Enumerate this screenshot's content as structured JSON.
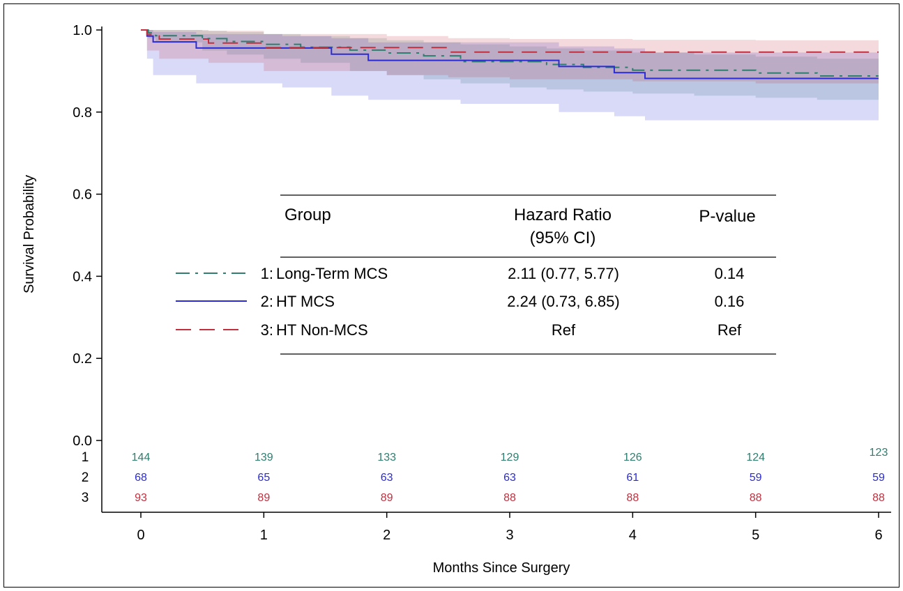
{
  "chart_data": {
    "type": "line",
    "title": "",
    "xlabel": "Months Since Surgery",
    "ylabel": "Survival Probability",
    "xlim": [
      0,
      6
    ],
    "ylim": [
      0.0,
      1.0
    ],
    "x_ticks": [
      "0",
      "1",
      "2",
      "3",
      "4",
      "5",
      "6"
    ],
    "y_ticks": [
      "0.0",
      "0.2",
      "0.4",
      "0.6",
      "0.8",
      "1.0"
    ],
    "grid": false,
    "colors": {
      "long_term_mcs": "#2e7d6e",
      "ht_mcs": "#2b2bd6",
      "ht_non_mcs": "#c0303f"
    },
    "series": [
      {
        "key": "long_term_mcs",
        "line_style": "dash-dot",
        "x": [
          0,
          0.06,
          0.12,
          0.5,
          0.7,
          1.0,
          1.3,
          1.7,
          2.0,
          2.3,
          2.6,
          3.0,
          3.3,
          3.6,
          4.0,
          4.5,
          5.0,
          5.5,
          6.0
        ],
        "y": [
          1.0,
          0.993,
          0.986,
          0.979,
          0.972,
          0.965,
          0.958,
          0.951,
          0.944,
          0.937,
          0.923,
          0.923,
          0.916,
          0.909,
          0.902,
          0.902,
          0.895,
          0.888,
          0.888
        ],
        "ci_lower": [
          1.0,
          0.98,
          0.97,
          0.95,
          0.94,
          0.93,
          0.92,
          0.9,
          0.89,
          0.88,
          0.87,
          0.86,
          0.855,
          0.85,
          0.845,
          0.84,
          0.835,
          0.83,
          0.82
        ],
        "ci_upper": [
          1.0,
          1.0,
          1.0,
          0.998,
          0.995,
          0.99,
          0.985,
          0.98,
          0.975,
          0.97,
          0.965,
          0.96,
          0.955,
          0.95,
          0.945,
          0.94,
          0.935,
          0.93,
          0.93
        ]
      },
      {
        "key": "ht_mcs",
        "line_style": "solid",
        "x": [
          0,
          0.05,
          0.1,
          0.45,
          1.0,
          1.15,
          1.55,
          1.85,
          2.2,
          2.6,
          3.0,
          3.4,
          3.85,
          4.1,
          4.5,
          5.0,
          5.5,
          6.0
        ],
        "y": [
          1.0,
          0.985,
          0.971,
          0.956,
          0.956,
          0.956,
          0.941,
          0.926,
          0.926,
          0.926,
          0.926,
          0.911,
          0.896,
          0.882,
          0.882,
          0.882,
          0.882,
          0.882
        ],
        "ci_lower": [
          1.0,
          0.93,
          0.89,
          0.87,
          0.87,
          0.86,
          0.84,
          0.83,
          0.83,
          0.82,
          0.82,
          0.8,
          0.79,
          0.78,
          0.78,
          0.78,
          0.78,
          0.78
        ],
        "ci_upper": [
          1.0,
          1.0,
          0.995,
          0.99,
          0.99,
          0.985,
          0.98,
          0.97,
          0.97,
          0.97,
          0.97,
          0.96,
          0.955,
          0.945,
          0.945,
          0.945,
          0.945,
          0.945
        ]
      },
      {
        "key": "ht_non_mcs",
        "line_style": "dashed",
        "x": [
          0,
          0.05,
          0.15,
          0.55,
          1.0,
          2.0,
          2.5,
          3.0,
          4.0,
          5.0,
          6.0
        ],
        "y": [
          1.0,
          0.989,
          0.978,
          0.968,
          0.957,
          0.957,
          0.946,
          0.946,
          0.946,
          0.946,
          0.946
        ],
        "ci_lower": [
          1.0,
          0.95,
          0.93,
          0.92,
          0.9,
          0.89,
          0.885,
          0.88,
          0.875,
          0.87,
          0.87
        ],
        "ci_upper": [
          1.0,
          1.0,
          1.0,
          0.998,
          0.99,
          0.985,
          0.98,
          0.978,
          0.976,
          0.975,
          0.975
        ]
      }
    ],
    "legend_table": {
      "headers": {
        "group": "Group",
        "hr_line1": "Hazard Ratio",
        "hr_line2": "(95% CI)",
        "p": "P-value"
      },
      "rows": [
        {
          "num": "1",
          "group": "Long-Term MCS",
          "hr": "2.11 (0.77, 5.77)",
          "p": "0.14",
          "key": "long_term_mcs"
        },
        {
          "num": "2",
          "group": "HT MCS",
          "hr": "2.24 (0.73, 6.85)",
          "p": "0.16",
          "key": "ht_mcs"
        },
        {
          "num": "3",
          "group": "HT Non-MCS",
          "hr": "Ref",
          "p": "Ref",
          "key": "ht_non_mcs"
        }
      ]
    },
    "at_risk": [
      {
        "label": "1",
        "key": "long_term_mcs",
        "values": [
          "144",
          "139",
          "133",
          "129",
          "126",
          "124",
          "123"
        ]
      },
      {
        "label": "2",
        "key": "ht_mcs",
        "values": [
          "68",
          "65",
          "63",
          "63",
          "61",
          "59",
          "59"
        ]
      },
      {
        "label": "3",
        "key": "ht_non_mcs",
        "values": [
          "93",
          "89",
          "89",
          "88",
          "88",
          "88",
          "88"
        ]
      }
    ]
  }
}
